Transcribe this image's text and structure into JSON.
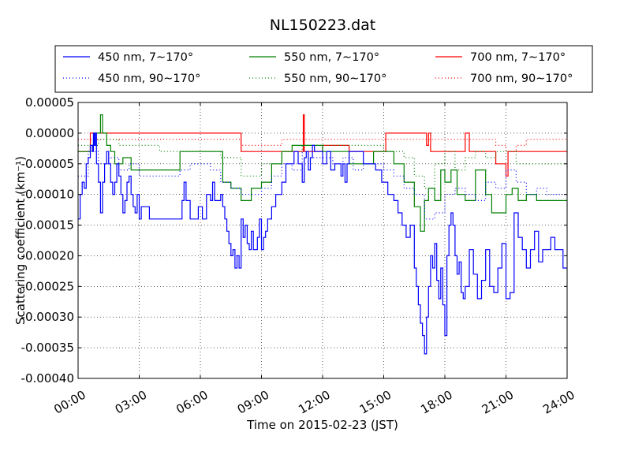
{
  "chart_data": {
    "type": "line",
    "title": "NL150223.dat",
    "xlabel": "Time on 2015-02-23 (JST)",
    "ylabel": "Scattering coefficient (km⁻¹)",
    "xlim": [
      0,
      24
    ],
    "ylim": [
      -0.0004,
      5e-05
    ],
    "x_ticks": [
      {
        "value": 0,
        "label": "00:00"
      },
      {
        "value": 3,
        "label": "03:00"
      },
      {
        "value": 6,
        "label": "06:00"
      },
      {
        "value": 9,
        "label": "09:00"
      },
      {
        "value": 12,
        "label": "12:00"
      },
      {
        "value": 15,
        "label": "15:00"
      },
      {
        "value": 18,
        "label": "18:00"
      },
      {
        "value": 21,
        "label": "21:00"
      },
      {
        "value": 24,
        "label": "24:00"
      }
    ],
    "y_ticks": [
      {
        "value": 5e-05,
        "label": "0.00005"
      },
      {
        "value": 0,
        "label": "0.00000"
      },
      {
        "value": -5e-05,
        "label": "-0.00005"
      },
      {
        "value": -0.0001,
        "label": "-0.00010"
      },
      {
        "value": -0.00015,
        "label": "-0.00015"
      },
      {
        "value": -0.0002,
        "label": "-0.00020"
      },
      {
        "value": -0.00025,
        "label": "-0.00025"
      },
      {
        "value": -0.0003,
        "label": "-0.00030"
      },
      {
        "value": -0.00035,
        "label": "-0.00035"
      },
      {
        "value": -0.0004,
        "label": "-0.00040"
      }
    ],
    "grid": true,
    "legend_position": "top, above plot, 3 columns",
    "series": [
      {
        "name": "450 nm, 7∼170°",
        "color": "#0000ff",
        "style": "solid",
        "x": [
          0,
          0.1,
          0.2,
          0.3,
          0.4,
          0.5,
          0.6,
          0.7,
          0.75,
          0.8,
          0.85,
          0.9,
          1.0,
          1.1,
          1.2,
          1.3,
          1.4,
          1.5,
          1.6,
          1.7,
          1.8,
          1.9,
          2.0,
          2.1,
          2.2,
          2.3,
          2.4,
          2.5,
          2.6,
          2.7,
          2.8,
          2.9,
          3.0,
          3.1,
          3.5,
          4.0,
          4.5,
          5.0,
          5.1,
          5.2,
          5.3,
          5.5,
          5.7,
          5.9,
          6.1,
          6.3,
          6.5,
          6.6,
          6.7,
          7.0,
          7.1,
          7.2,
          7.3,
          7.4,
          7.5,
          7.6,
          7.7,
          7.8,
          7.9,
          8.0,
          8.1,
          8.2,
          8.3,
          8.4,
          8.5,
          8.6,
          8.7,
          8.8,
          8.9,
          9.0,
          9.1,
          9.2,
          9.3,
          9.5,
          9.7,
          9.9,
          10.0,
          10.1,
          10.2,
          10.4,
          10.6,
          10.8,
          11.0,
          11.1,
          11.2,
          11.3,
          11.4,
          11.5,
          11.6,
          11.8,
          12.0,
          12.2,
          12.4,
          12.6,
          12.8,
          12.9,
          13.0,
          13.1,
          13.2,
          13.3,
          13.5,
          13.7,
          14.0,
          14.3,
          14.6,
          14.9,
          15.2,
          15.5,
          15.7,
          15.9,
          16.1,
          16.3,
          16.5,
          16.6,
          16.7,
          16.8,
          16.9,
          17.0,
          17.1,
          17.2,
          17.3,
          17.4,
          17.5,
          17.6,
          17.7,
          17.8,
          17.9,
          18.0,
          18.1,
          18.2,
          18.3,
          18.4,
          18.5,
          18.6,
          18.7,
          18.8,
          18.9,
          19.0,
          19.2,
          19.4,
          19.6,
          19.8,
          20.0,
          20.2,
          20.4,
          20.6,
          20.8,
          21.0,
          21.2,
          21.4,
          21.6,
          21.8,
          22.0,
          22.2,
          22.4,
          22.6,
          22.8,
          23.0,
          23.2,
          23.4,
          23.6,
          23.8,
          24.0
        ],
        "y": [
          -0.00014,
          -0.0001,
          -8e-05,
          -9e-05,
          -5e-05,
          -4e-05,
          -2e-05,
          -3e-05,
          0.0,
          -2e-05,
          0.0,
          -5e-05,
          -8e-05,
          -0.00013,
          -8e-05,
          -5e-05,
          -3e-05,
          -5e-05,
          -8e-05,
          -0.0001,
          -8e-05,
          -5e-05,
          -7e-05,
          -0.0001,
          -0.00013,
          -0.00011,
          -8e-05,
          -7e-05,
          -0.0001,
          -0.00012,
          -0.00013,
          -0.0001,
          -0.00014,
          -0.00012,
          -0.00014,
          -0.00014,
          -0.00014,
          -0.00014,
          -0.00011,
          -8e-05,
          -0.00011,
          -0.00014,
          -0.00014,
          -0.00012,
          -0.00014,
          -0.0001,
          -0.00011,
          -8e-05,
          -0.00011,
          -0.0001,
          -0.00012,
          -0.00014,
          -0.00016,
          -0.00018,
          -0.0002,
          -0.00019,
          -0.00022,
          -0.0002,
          -0.00022,
          -0.00014,
          -0.00017,
          -0.00015,
          -0.00018,
          -0.00019,
          -0.00016,
          -0.00019,
          -0.00019,
          -0.00017,
          -0.00014,
          -0.00019,
          -0.00017,
          -0.00016,
          -0.00014,
          -0.00012,
          -0.0001,
          -0.0001,
          -8e-05,
          -8e-05,
          -5e-05,
          -5e-05,
          -3e-05,
          -5e-05,
          -8e-05,
          -4e-05,
          -3e-05,
          -6e-05,
          -4e-05,
          -2e-05,
          -3e-05,
          -3e-05,
          -5e-05,
          -3e-05,
          -6e-05,
          -5e-05,
          -5e-05,
          -7e-05,
          -5e-05,
          -8e-05,
          -5e-05,
          -3e-05,
          -3e-05,
          -3e-05,
          -5e-05,
          -5e-05,
          -6e-05,
          -8e-05,
          -0.0001,
          -0.00011,
          -0.00013,
          -0.00015,
          -0.00017,
          -0.00015,
          -0.00022,
          -0.00025,
          -0.00028,
          -0.00031,
          -0.00033,
          -0.00036,
          -0.0003,
          -0.00025,
          -0.0002,
          -0.00022,
          -0.00018,
          -0.00024,
          -0.00027,
          -0.00022,
          -0.00028,
          -0.00033,
          -0.0002,
          -0.00015,
          -0.00013,
          -0.00015,
          -0.0002,
          -0.00023,
          -0.00021,
          -0.00026,
          -0.00027,
          -0.00025,
          -0.00019,
          -0.00023,
          -0.00027,
          -0.00024,
          -0.00019,
          -0.00025,
          -0.00026,
          -0.00022,
          -0.00018,
          -0.00027,
          -0.00026,
          -0.00013,
          -0.00017,
          -0.00019,
          -0.00022,
          -0.00019,
          -0.00016,
          -0.00021,
          -0.00019,
          -0.00019,
          -0.00017,
          -0.00019,
          -0.00019,
          -0.00022,
          -0.00022
        ]
      },
      {
        "name": "450 nm, 90∼170°",
        "color": "#0000ff",
        "style": "dotted",
        "x": [
          0,
          0.5,
          1.0,
          1.5,
          2.0,
          2.5,
          3.0,
          3.5,
          4.0,
          4.5,
          5.0,
          5.5,
          6.0,
          6.5,
          7.0,
          7.5,
          8.0,
          8.5,
          9.0,
          9.5,
          10.0,
          10.5,
          11.0,
          11.5,
          12.0,
          12.5,
          13.0,
          13.5,
          14.0,
          14.5,
          15.0,
          15.5,
          16.0,
          16.5,
          17.0,
          17.5,
          18.0,
          18.5,
          19.0,
          19.5,
          20.0,
          20.5,
          21.0,
          21.5,
          22.0,
          22.5,
          23.0,
          23.5,
          24.0
        ],
        "y": [
          -7e-05,
          -3e-05,
          -5e-05,
          -4e-05,
          -6e-05,
          -5e-05,
          -7e-05,
          -7e-05,
          -7e-05,
          -7e-05,
          -6e-05,
          -5e-05,
          -5e-05,
          -6e-05,
          -8e-05,
          -9e-05,
          -0.0001,
          -0.0001,
          -9e-05,
          -7e-05,
          -5e-05,
          -6e-05,
          -3e-05,
          -4e-05,
          -4e-05,
          -5e-05,
          -4e-05,
          -6e-05,
          -5e-05,
          -5e-05,
          -6e-05,
          -7e-05,
          -9e-05,
          -0.0001,
          -0.00014,
          -0.00013,
          -0.0001,
          -9e-05,
          -0.0001,
          -0.00011,
          -8e-05,
          -9e-05,
          -6e-05,
          -8e-05,
          -0.0001,
          -9e-05,
          -0.0001,
          -0.0001,
          -0.0001
        ]
      },
      {
        "name": "550 nm, 7∼170°",
        "color": "#008000",
        "style": "solid",
        "x": [
          0,
          0.2,
          0.4,
          0.6,
          0.8,
          1.0,
          1.1,
          1.2,
          1.4,
          1.6,
          1.8,
          2.0,
          2.2,
          2.4,
          2.6,
          2.8,
          3.0,
          3.5,
          4.0,
          4.5,
          5.0,
          5.5,
          6.0,
          6.5,
          7.0,
          7.1,
          7.5,
          8.0,
          8.5,
          9.0,
          9.5,
          10.0,
          10.5,
          11.0,
          11.5,
          12.0,
          12.5,
          13.0,
          13.3,
          13.6,
          14.0,
          14.5,
          15.0,
          15.5,
          16.0,
          16.5,
          16.8,
          17.0,
          17.2,
          17.5,
          17.8,
          18.0,
          18.3,
          18.6,
          19.0,
          19.5,
          20.0,
          20.3,
          20.6,
          21.0,
          21.3,
          21.6,
          22.0,
          22.5,
          23.0,
          23.5,
          24.0
        ],
        "y": [
          -3e-05,
          -3e-05,
          -3e-05,
          -2e-05,
          0.0,
          0.0,
          3e-05,
          0.0,
          -2e-05,
          -3e-05,
          -5e-05,
          -5e-05,
          -4e-05,
          -4e-05,
          -6e-05,
          -6e-05,
          -6e-05,
          -6e-05,
          -6e-05,
          -6e-05,
          -3e-05,
          -3e-05,
          -3e-05,
          -3e-05,
          -3e-05,
          -8e-05,
          -9e-05,
          -0.00011,
          -9e-05,
          -8e-05,
          -5e-05,
          -3e-05,
          -2e-05,
          -2e-05,
          -2e-05,
          -3e-05,
          -3e-05,
          -3e-05,
          -5e-05,
          -5e-05,
          -5e-05,
          -3e-05,
          -3e-05,
          -5e-05,
          -8e-05,
          -0.00012,
          -0.00016,
          -0.00011,
          -9e-05,
          -0.00011,
          -6e-05,
          -8e-05,
          -6e-05,
          -0.0001,
          -0.00011,
          -6e-05,
          -0.0001,
          -0.00013,
          -0.00013,
          -0.0001,
          -9e-05,
          -0.00011,
          -0.0001,
          -0.00011,
          -0.00011,
          -0.00011,
          -0.00011
        ]
      },
      {
        "name": "550 nm, 90∼170°",
        "color": "#008000",
        "style": "dotted",
        "x": [
          0,
          1.0,
          2.0,
          3.0,
          4.0,
          5.0,
          6.0,
          7.0,
          8.0,
          9.0,
          10.0,
          11.0,
          12.0,
          13.0,
          14.0,
          15.0,
          16.0,
          16.5,
          17.0,
          17.5,
          18.0,
          18.5,
          19.0,
          19.5,
          20.0,
          20.5,
          21.0,
          21.5,
          22.0,
          23.0,
          24.0
        ],
        "y": [
          -2e-05,
          -1e-05,
          -2e-05,
          -2e-05,
          -3e-05,
          -3e-05,
          -3e-05,
          -4e-05,
          -7e-05,
          -5e-05,
          -3e-05,
          -2e-05,
          -2e-05,
          -2e-05,
          -2e-05,
          -3e-05,
          -4e-05,
          -7e-05,
          -9e-05,
          -5e-05,
          -3e-05,
          -6e-05,
          -4e-05,
          -3e-05,
          -4e-05,
          -3e-05,
          -3e-05,
          -5e-05,
          -5e-05,
          -5e-05,
          -6e-05
        ]
      },
      {
        "name": "700 nm, 7∼170°",
        "color": "#ff0000",
        "style": "solid",
        "x": [
          0,
          0.6,
          1.0,
          2.0,
          3.0,
          4.0,
          5.0,
          5.1,
          6.0,
          7.0,
          7.9,
          8.0,
          9.0,
          10.0,
          11.0,
          11.05,
          11.1,
          12.0,
          13.0,
          13.3,
          14.0,
          15.0,
          15.1,
          16.0,
          17.0,
          17.1,
          17.2,
          17.3,
          17.5,
          17.9,
          18.0,
          18.5,
          19.0,
          19.2,
          20.0,
          20.5,
          20.8,
          21.0,
          21.1,
          21.5,
          22.0,
          23.0,
          24.0
        ],
        "y": [
          -3e-05,
          0.0,
          0.0,
          0.0,
          0.0,
          0.0,
          0.0,
          0.0,
          0.0,
          0.0,
          0.0,
          -3e-05,
          -3e-05,
          -3e-05,
          -3e-05,
          3e-05,
          -3e-05,
          -2e-05,
          -2e-05,
          -3e-05,
          -3e-05,
          -3e-05,
          0.0,
          0.0,
          0.0,
          -2e-05,
          0.0,
          -3e-05,
          -3e-05,
          -3e-05,
          -3e-05,
          -3e-05,
          0.0,
          -3e-05,
          -3e-05,
          -5e-05,
          -5e-05,
          -7e-05,
          -3e-05,
          -3e-05,
          -3e-05,
          -3e-05,
          -3e-05
        ]
      },
      {
        "name": "700 nm, 90∼170°",
        "color": "#ff0000",
        "style": "dotted",
        "x": [
          0,
          2.0,
          4.0,
          6.0,
          8.0,
          10.0,
          12.0,
          14.0,
          16.0,
          18.0,
          20.0,
          20.5,
          21.0,
          21.5,
          22.0,
          24.0
        ],
        "y": [
          -1e-05,
          -1e-05,
          -1e-05,
          -1e-05,
          -2e-05,
          -1e-05,
          -1e-05,
          -1e-05,
          -1e-05,
          -1e-05,
          -1e-05,
          -2e-05,
          -3e-05,
          -2e-05,
          -1e-05,
          -1e-05
        ]
      }
    ]
  }
}
